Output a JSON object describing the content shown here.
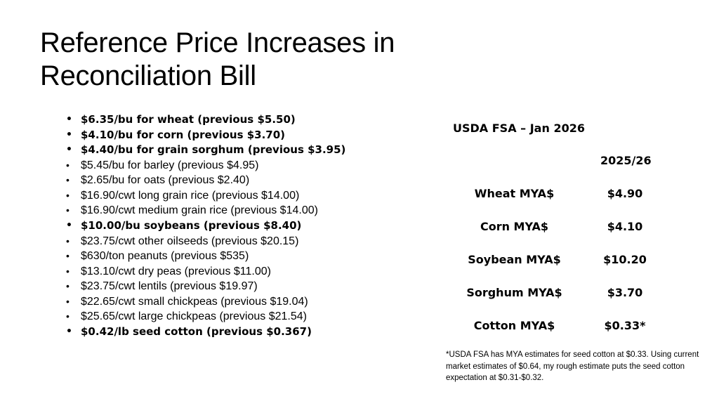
{
  "slide": {
    "title": "Reference Price Increases in Reconciliation Bill"
  },
  "bullets": [
    {
      "text": "$6.35/bu for wheat (previous $5.50)",
      "bold": true
    },
    {
      "text": "$4.10/bu for corn (previous $3.70)",
      "bold": true
    },
    {
      "text": "$4.40/bu for grain sorghum (previous $3.95)",
      "bold": true
    },
    {
      "text": "$5.45/bu for barley (previous $4.95)",
      "bold": false
    },
    {
      "text": "$2.65/bu for oats (previous $2.40)",
      "bold": false
    },
    {
      "text": "$16.90/cwt long grain rice (previous $14.00)",
      "bold": false
    },
    {
      "text": "$16.90/cwt medium grain rice (previous $14.00)",
      "bold": false
    },
    {
      "text": "$10.00/bu soybeans (previous $8.40)",
      "bold": true
    },
    {
      "text": "$23.75/cwt other oilseeds (previous $20.15)",
      "bold": false
    },
    {
      "text": "$630/ton peanuts (previous $535)",
      "bold": false
    },
    {
      "text": "$13.10/cwt dry peas (previous $11.00)",
      "bold": false
    },
    {
      "text": "$23.75/cwt lentils (previous $19.97)",
      "bold": false
    },
    {
      "text": "$22.65/cwt small chickpeas (previous $19.04)",
      "bold": false
    },
    {
      "text": "$25.65/cwt large chickpeas (previous $21.54)",
      "bold": false
    },
    {
      "text": "$0.42/lb seed cotton (previous $0.367)",
      "bold": true
    }
  ],
  "usda_table": {
    "header": "USDA FSA – Jan 2026",
    "year": "2025/26",
    "rows": [
      {
        "label": "Wheat MYA$",
        "value": "$4.90"
      },
      {
        "label": "Corn MYA$",
        "value": "$4.10"
      },
      {
        "label": "Soybean MYA$",
        "value": "$10.20"
      },
      {
        "label": "Sorghum MYA$",
        "value": "$3.70"
      },
      {
        "label": "Cotton MYA$",
        "value": "$0.33*"
      }
    ]
  },
  "footnote": "*USDA FSA has MYA estimates for seed cotton at $0.33. Using current market estimates of $0.64, my rough estimate puts the seed cotton expectation at $0.31-$0.32."
}
